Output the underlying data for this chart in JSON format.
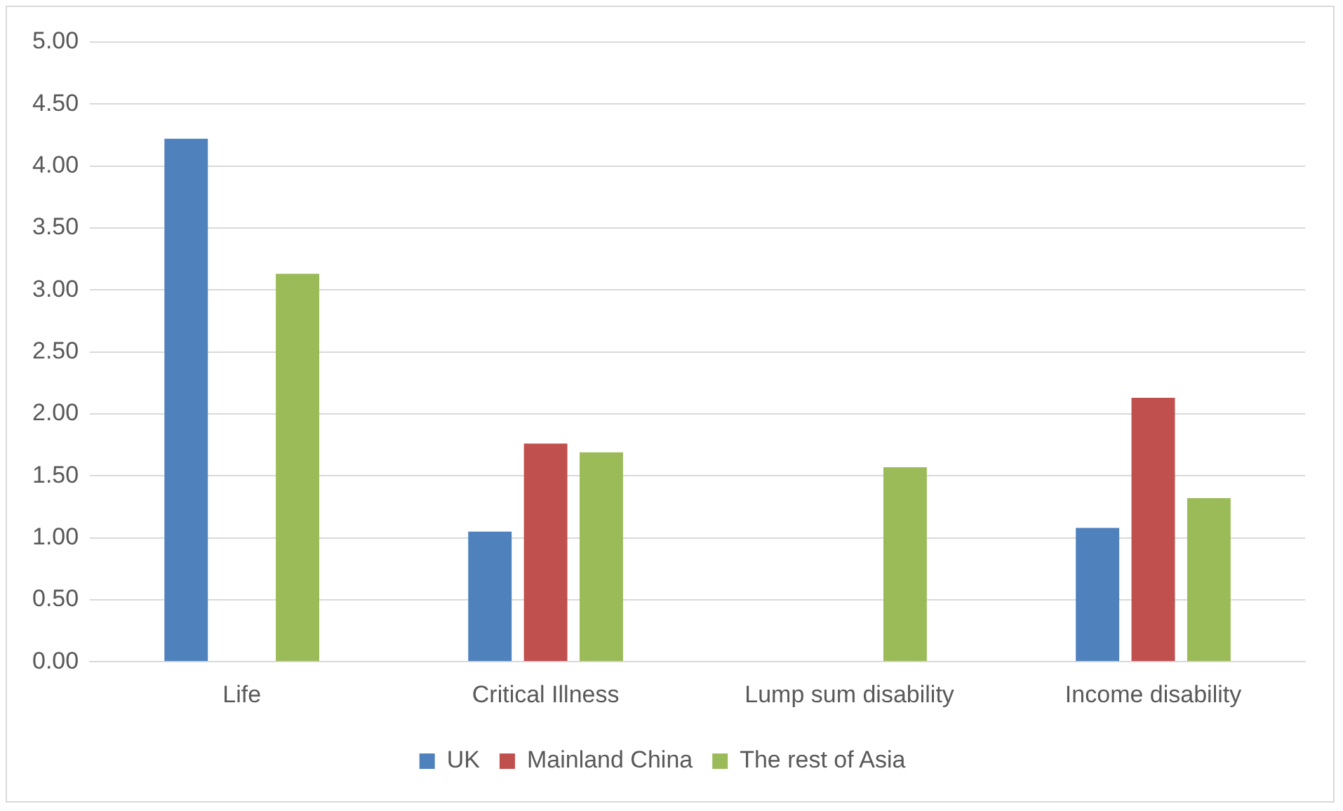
{
  "chart_data": {
    "type": "bar",
    "categories": [
      "Life",
      "Critical Illness",
      "Lump sum disability",
      "Income disability"
    ],
    "series": [
      {
        "name": "UK",
        "color": "#4f81bd",
        "values": [
          4.22,
          1.05,
          null,
          1.08
        ]
      },
      {
        "name": "Mainland China",
        "color": "#c0504d",
        "values": [
          null,
          1.76,
          null,
          2.13
        ]
      },
      {
        "name": "The rest of Asia",
        "color": "#9bbb59",
        "values": [
          3.13,
          1.69,
          1.57,
          1.32
        ]
      }
    ],
    "ylim": [
      0,
      5
    ],
    "yticks": [
      {
        "value": 0,
        "label": "0.00"
      },
      {
        "value": 0.5,
        "label": "0.50"
      },
      {
        "value": 1,
        "label": "1.00"
      },
      {
        "value": 1.5,
        "label": "1.50"
      },
      {
        "value": 2,
        "label": "2.00"
      },
      {
        "value": 2.5,
        "label": "2.50"
      },
      {
        "value": 3,
        "label": "3.00"
      },
      {
        "value": 3.5,
        "label": "3.50"
      },
      {
        "value": 4,
        "label": "4.00"
      },
      {
        "value": 4.5,
        "label": "4.50"
      },
      {
        "value": 5,
        "label": "5.00"
      }
    ],
    "grid": "y",
    "legend": "bottom"
  }
}
